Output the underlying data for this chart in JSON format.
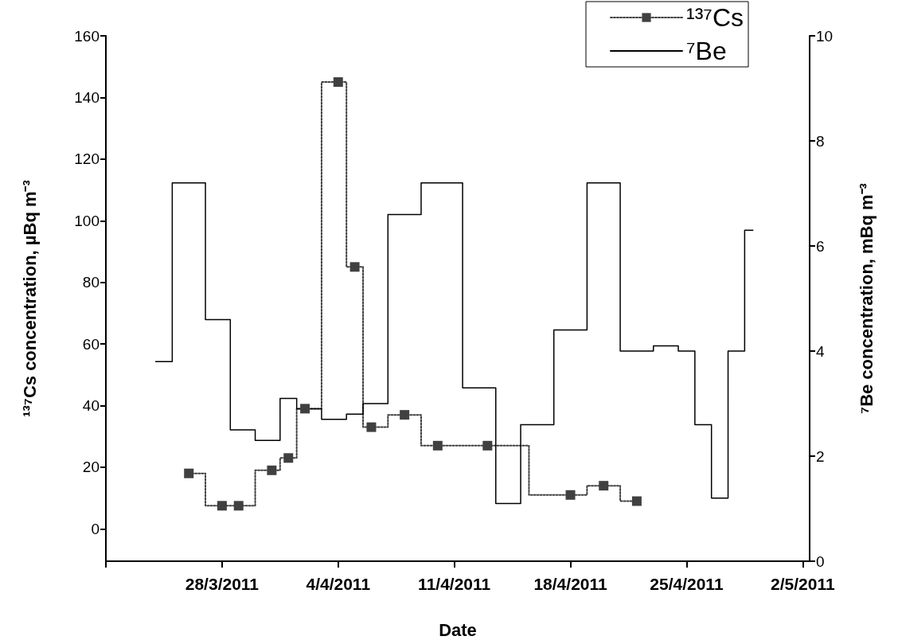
{
  "chart_data": {
    "type": "step",
    "xlabel": "Date",
    "ylabel": "¹³⁷Cs concentration, µBq m⁻³",
    "y2label": "⁷Be concentration, mBq m⁻³",
    "xlim": [
      "2011-03-21",
      "2011-05-02T10:00"
    ],
    "xticks": [
      {
        "value": "2011-03-21",
        "label": null
      },
      {
        "value": "2011-03-28",
        "label": "28/3/2011"
      },
      {
        "value": "2011-04-04",
        "label": "4/4/2011"
      },
      {
        "value": "2011-04-11",
        "label": "11/4/2011"
      },
      {
        "value": "2011-04-18",
        "label": "18/4/2011"
      },
      {
        "value": "2011-04-25",
        "label": "25/4/2011"
      },
      {
        "value": "2011-05-02",
        "label": "2/5/2011"
      }
    ],
    "ylim": [
      -10.5,
      160
    ],
    "yticks": [
      0,
      20,
      40,
      60,
      80,
      100,
      120,
      140,
      160
    ],
    "y2lim": [
      0,
      10
    ],
    "y2ticks": [
      0,
      2,
      4,
      6,
      8,
      10
    ],
    "legend": "top right",
    "grid": false,
    "series": [
      {
        "name": "¹³⁷Cs",
        "color": "#404040",
        "marker": "square",
        "line_style": "dotted",
        "x": [
          "2011-03-26",
          "2011-03-28",
          "2011-03-29",
          "2011-03-31",
          "2011-04-01",
          "2011-04-02",
          "2011-04-04",
          "2011-04-05",
          "2011-04-06",
          "2011-04-08",
          "2011-04-10",
          "2011-04-13",
          "2011-04-18",
          "2011-04-20",
          "2011-04-22"
        ],
        "values": [
          18,
          7.5,
          7.5,
          19,
          23,
          39,
          145,
          85,
          33,
          37,
          27,
          27,
          11,
          14,
          9
        ]
      },
      {
        "name": "⁷Be",
        "axis": "y2",
        "color": "#000000",
        "marker": "none",
        "line_style": "solid",
        "x": [
          "2011-03-24",
          "2011-03-25",
          "2011-03-27",
          "2011-03-28T12:00",
          "2011-03-30",
          "2011-03-31T12:00",
          "2011-04-01T12:00",
          "2011-04-03",
          "2011-04-04T12:00",
          "2011-04-05T12:00",
          "2011-04-07",
          "2011-04-09",
          "2011-04-11T12:00",
          "2011-04-13T12:00",
          "2011-04-15",
          "2011-04-17",
          "2011-04-19",
          "2011-04-21",
          "2011-04-23",
          "2011-04-24T12:00",
          "2011-04-25T12:00",
          "2011-04-26T12:00",
          "2011-04-27T12:00",
          "2011-04-28T12:00",
          "2011-04-29"
        ],
        "values": [
          3.8,
          7.2,
          4.6,
          2.5,
          2.3,
          3.1,
          2.9,
          2.7,
          2.8,
          3.0,
          6.6,
          7.2,
          3.3,
          1.1,
          2.6,
          4.4,
          7.2,
          4.0,
          4.1,
          4.0,
          2.6,
          1.2,
          4.0,
          6.3,
          6.3
        ]
      }
    ]
  }
}
